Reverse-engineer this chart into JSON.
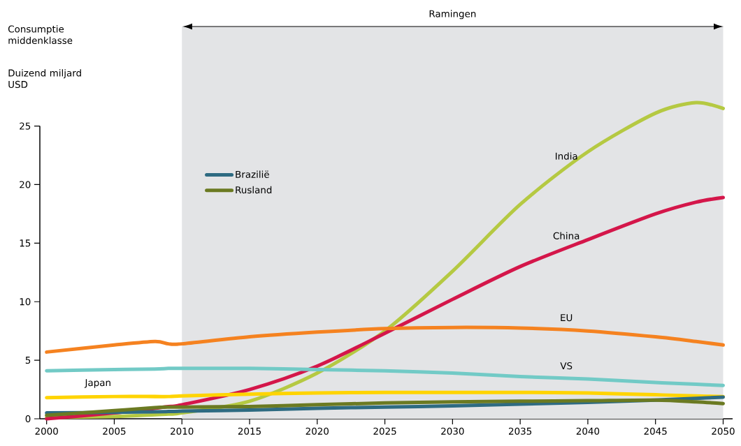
{
  "chart_data": {
    "type": "line",
    "ylabel": "Consumptie middenklasse",
    "annotations": [
      "Duizend miljard USD"
    ],
    "x": [
      2000,
      2005,
      2008,
      2009,
      2010,
      2015,
      2020,
      2025,
      2030,
      2035,
      2040,
      2045,
      2048,
      2050
    ],
    "series": [
      {
        "name": "India",
        "color": "#b5c942",
        "values": [
          0.1,
          0.2,
          0.35,
          0.4,
          0.5,
          1.5,
          3.9,
          7.5,
          12.6,
          18.3,
          22.8,
          26.1,
          27.0,
          26.5
        ]
      },
      {
        "name": "China",
        "color": "#d4164a",
        "values": [
          0.0,
          0.5,
          0.9,
          1.05,
          1.2,
          2.5,
          4.5,
          7.3,
          10.2,
          13.0,
          15.3,
          17.5,
          18.5,
          18.9
        ]
      },
      {
        "name": "EU",
        "color": "#f58220",
        "values": [
          5.7,
          6.3,
          6.6,
          6.4,
          6.4,
          7.0,
          7.4,
          7.7,
          7.8,
          7.75,
          7.5,
          7.0,
          6.6,
          6.3
        ]
      },
      {
        "name": "VS",
        "color": "#72cac6",
        "values": [
          4.1,
          4.2,
          4.25,
          4.3,
          4.3,
          4.3,
          4.2,
          4.1,
          3.9,
          3.6,
          3.4,
          3.1,
          2.95,
          2.85
        ]
      },
      {
        "name": "Japan",
        "color": "#ffd400",
        "values": [
          1.8,
          1.9,
          1.9,
          1.9,
          1.95,
          2.1,
          2.2,
          2.25,
          2.25,
          2.25,
          2.2,
          2.05,
          1.95,
          1.9
        ]
      },
      {
        "name": "Brazilië",
        "color": "#2e6b82",
        "values": [
          0.5,
          0.55,
          0.6,
          0.62,
          0.65,
          0.75,
          0.9,
          1.0,
          1.1,
          1.25,
          1.4,
          1.6,
          1.75,
          1.85
        ]
      },
      {
        "name": "Rusland",
        "color": "#6b7a22",
        "values": [
          0.3,
          0.7,
          0.95,
          1.0,
          1.0,
          1.05,
          1.2,
          1.35,
          1.45,
          1.5,
          1.55,
          1.6,
          1.45,
          1.3
        ]
      }
    ],
    "xlim": [
      1999.5,
      2050.7
    ],
    "ylim": [
      0,
      33.5
    ],
    "xticks": [
      2000,
      2005,
      2010,
      2015,
      2020,
      2025,
      2030,
      2035,
      2040,
      2045,
      2050
    ],
    "yticks": [
      0,
      5,
      10,
      15,
      20,
      25
    ],
    "bands": [
      {
        "axis": "x",
        "from": 2010,
        "to": 2050,
        "label": "Ramingen",
        "color": "#e3e4e6"
      }
    ],
    "legend": "left",
    "grid": false,
    "marker": "none",
    "line_style": "solid"
  }
}
